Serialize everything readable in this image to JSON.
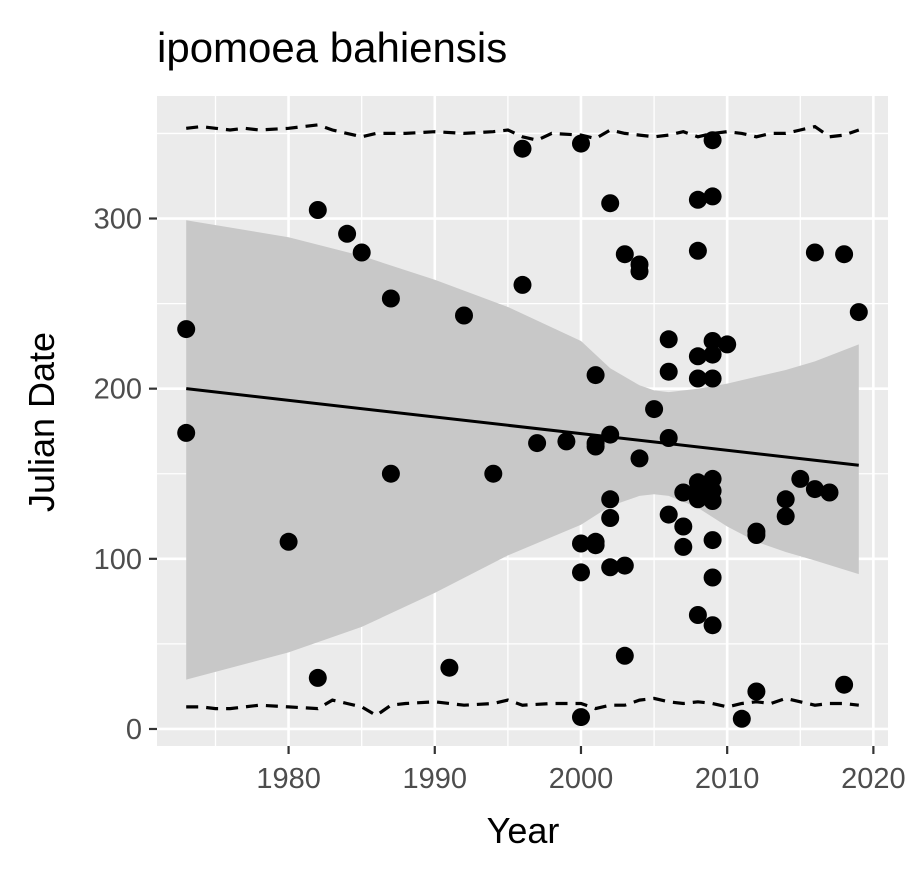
{
  "chart_data": {
    "type": "scatter",
    "title": "ipomoea bahiensis",
    "xlabel": "Year",
    "ylabel": "Julian Date",
    "xlim": [
      1971,
      2021
    ],
    "ylim": [
      -10,
      372
    ],
    "x_ticks": [
      1980,
      1990,
      2000,
      2010,
      2020
    ],
    "y_ticks": [
      0,
      100,
      200,
      300
    ],
    "x_tick_labels": [
      "1980",
      "1990",
      "2000",
      "2010",
      "2020"
    ],
    "y_tick_labels": [
      "0",
      "100",
      "200",
      "300"
    ],
    "grid": true,
    "legend": "none",
    "colors": {
      "panel": "#ebebeb",
      "grid": "#ffffff",
      "points": "#000000",
      "ribbon": "#c8c8c8",
      "fit_line": "#000000",
      "quantile_lines": "#000000"
    },
    "points": [
      {
        "x": 1973,
        "y": 235
      },
      {
        "x": 1973,
        "y": 174
      },
      {
        "x": 1980,
        "y": 110
      },
      {
        "x": 1982,
        "y": 305
      },
      {
        "x": 1982,
        "y": 30
      },
      {
        "x": 1984,
        "y": 291
      },
      {
        "x": 1985,
        "y": 280
      },
      {
        "x": 1987,
        "y": 253
      },
      {
        "x": 1987,
        "y": 150
      },
      {
        "x": 1991,
        "y": 36
      },
      {
        "x": 1992,
        "y": 243
      },
      {
        "x": 1994,
        "y": 150
      },
      {
        "x": 1996,
        "y": 341
      },
      {
        "x": 1996,
        "y": 261
      },
      {
        "x": 1997,
        "y": 168
      },
      {
        "x": 1999,
        "y": 169
      },
      {
        "x": 2000,
        "y": 344
      },
      {
        "x": 2000,
        "y": 109
      },
      {
        "x": 2000,
        "y": 92
      },
      {
        "x": 2000,
        "y": 7
      },
      {
        "x": 2001,
        "y": 208
      },
      {
        "x": 2001,
        "y": 168
      },
      {
        "x": 2001,
        "y": 166
      },
      {
        "x": 2001,
        "y": 110
      },
      {
        "x": 2001,
        "y": 108
      },
      {
        "x": 2002,
        "y": 309
      },
      {
        "x": 2002,
        "y": 173
      },
      {
        "x": 2002,
        "y": 135
      },
      {
        "x": 2002,
        "y": 124
      },
      {
        "x": 2002,
        "y": 95
      },
      {
        "x": 2003,
        "y": 279
      },
      {
        "x": 2003,
        "y": 96
      },
      {
        "x": 2003,
        "y": 43
      },
      {
        "x": 2004,
        "y": 273
      },
      {
        "x": 2004,
        "y": 269
      },
      {
        "x": 2004,
        "y": 159
      },
      {
        "x": 2005,
        "y": 188
      },
      {
        "x": 2006,
        "y": 229
      },
      {
        "x": 2006,
        "y": 210
      },
      {
        "x": 2006,
        "y": 171
      },
      {
        "x": 2006,
        "y": 126
      },
      {
        "x": 2007,
        "y": 139
      },
      {
        "x": 2007,
        "y": 119
      },
      {
        "x": 2007,
        "y": 107
      },
      {
        "x": 2008,
        "y": 311
      },
      {
        "x": 2008,
        "y": 281
      },
      {
        "x": 2008,
        "y": 219
      },
      {
        "x": 2008,
        "y": 206
      },
      {
        "x": 2008,
        "y": 145
      },
      {
        "x": 2008,
        "y": 140
      },
      {
        "x": 2008,
        "y": 135
      },
      {
        "x": 2008,
        "y": 67
      },
      {
        "x": 2009,
        "y": 346
      },
      {
        "x": 2009,
        "y": 313
      },
      {
        "x": 2009,
        "y": 228
      },
      {
        "x": 2009,
        "y": 220
      },
      {
        "x": 2009,
        "y": 206
      },
      {
        "x": 2009,
        "y": 147
      },
      {
        "x": 2009,
        "y": 140
      },
      {
        "x": 2009,
        "y": 134
      },
      {
        "x": 2009,
        "y": 111
      },
      {
        "x": 2009,
        "y": 89
      },
      {
        "x": 2009,
        "y": 61
      },
      {
        "x": 2010,
        "y": 226
      },
      {
        "x": 2011,
        "y": 6
      },
      {
        "x": 2012,
        "y": 116
      },
      {
        "x": 2012,
        "y": 114
      },
      {
        "x": 2012,
        "y": 22
      },
      {
        "x": 2014,
        "y": 135
      },
      {
        "x": 2014,
        "y": 125
      },
      {
        "x": 2015,
        "y": 147
      },
      {
        "x": 2016,
        "y": 280
      },
      {
        "x": 2016,
        "y": 141
      },
      {
        "x": 2017,
        "y": 139
      },
      {
        "x": 2018,
        "y": 279
      },
      {
        "x": 2018,
        "y": 26
      },
      {
        "x": 2019,
        "y": 245
      }
    ],
    "fit_line": {
      "x": [
        1973,
        2019
      ],
      "y": [
        200,
        155
      ]
    },
    "confidence_band": {
      "x": [
        1973,
        1980,
        1985,
        1990,
        1995,
        2000,
        2002,
        2004,
        2005,
        2006,
        2008,
        2010,
        2012,
        2014,
        2016,
        2019
      ],
      "upper": [
        299,
        289,
        278,
        264,
        248,
        228,
        212,
        202,
        199,
        198,
        200,
        203,
        207,
        211,
        216,
        226
      ],
      "lower": [
        29,
        45,
        60,
        80,
        102,
        120,
        131,
        137,
        138,
        137,
        130,
        119,
        110,
        104,
        99,
        91
      ]
    },
    "quantile_lines": [
      {
        "x": [
          1973,
          1974,
          1975,
          1976,
          1977,
          1978,
          1980,
          1982,
          1983,
          1985,
          1986,
          1988,
          1990,
          1992,
          1994,
          1995,
          1996,
          1997,
          1998,
          2000,
          2001,
          2002,
          2003,
          2004,
          2005,
          2006,
          2007,
          2008,
          2009,
          2010,
          2011,
          2012,
          2013,
          2014,
          2015,
          2016,
          2017,
          2018,
          2019
        ],
        "y": [
          353,
          354,
          353,
          352,
          353,
          352,
          353,
          355,
          352,
          348,
          350,
          350,
          351,
          350,
          351,
          352,
          348,
          346,
          350,
          349,
          347,
          352,
          350,
          349,
          348,
          349,
          351,
          348,
          350,
          351,
          350,
          348,
          350,
          350,
          352,
          354,
          348,
          349,
          352
        ]
      },
      {
        "x": [
          1973,
          1974,
          1975,
          1976,
          1977,
          1978,
          1980,
          1982,
          1983,
          1984,
          1985,
          1986,
          1987,
          1988,
          1990,
          1992,
          1994,
          1995,
          1996,
          1998,
          2000,
          2001,
          2002,
          2003,
          2004,
          2005,
          2006,
          2007,
          2008,
          2009,
          2010,
          2011,
          2012,
          2013,
          2014,
          2015,
          2016,
          2017,
          2018,
          2019
        ],
        "y": [
          13,
          13,
          12,
          12,
          13,
          14,
          13,
          12,
          17,
          15,
          13,
          8,
          14,
          15,
          16,
          14,
          15,
          17,
          14,
          15,
          15,
          12,
          14,
          14,
          17,
          18,
          16,
          15,
          16,
          15,
          13,
          15,
          16,
          15,
          18,
          16,
          14,
          15,
          15,
          14
        ]
      }
    ]
  }
}
